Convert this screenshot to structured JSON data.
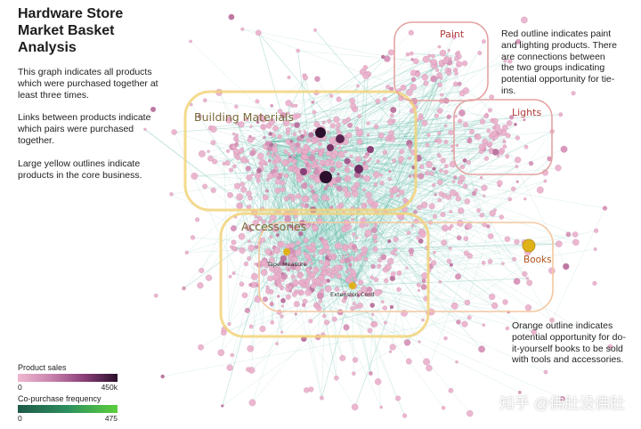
{
  "title": "Hardware Store\nMarket Basket\nAnalysis",
  "description": [
    "This graph indicates all products which were purchased together at least three times.",
    "Links between products indicate which pairs were purchased together.",
    "Large yellow outlines indicate products in the core business."
  ],
  "notes": {
    "red": "Red outline indicates paint and lighting products. There are connections between the two groups indicating potential opportunity for tie-ins.",
    "orange": "Orange outline indicates potential opportunity for do-it-yourself books to be sold with tools and accessories."
  },
  "groups": [
    {
      "label": "Building Materials",
      "kind": "core",
      "color": "#f2d47a",
      "text_color": "#7a6a3a"
    },
    {
      "label": "Accessories",
      "kind": "core",
      "color": "#f2d47a",
      "text_color": "#7a6a3a"
    },
    {
      "label": "Paint",
      "kind": "red",
      "color": "#e3a3a3",
      "text_color": "#b23a3a"
    },
    {
      "label": "Lights",
      "kind": "red",
      "color": "#e3a3a3",
      "text_color": "#b23a3a"
    },
    {
      "label": "Books",
      "kind": "orange",
      "color": "#f3c7a0",
      "text_color": "#b5541d"
    }
  ],
  "node_labels": [
    "Tape Measure",
    "Extension Cord"
  ],
  "legend": {
    "sales": {
      "label": "Product sales",
      "min": "0",
      "max": "450k"
    },
    "copurchase": {
      "label": "Co-purchase frequency",
      "min": "0",
      "max": "475"
    }
  },
  "colors": {
    "link": "#5fb8a6",
    "node_light": "#e9a6c6",
    "node_dark": "#2b0f2c",
    "highlight": "#e0b21a"
  },
  "watermark": "知乎 @佛肚没佛肚"
}
